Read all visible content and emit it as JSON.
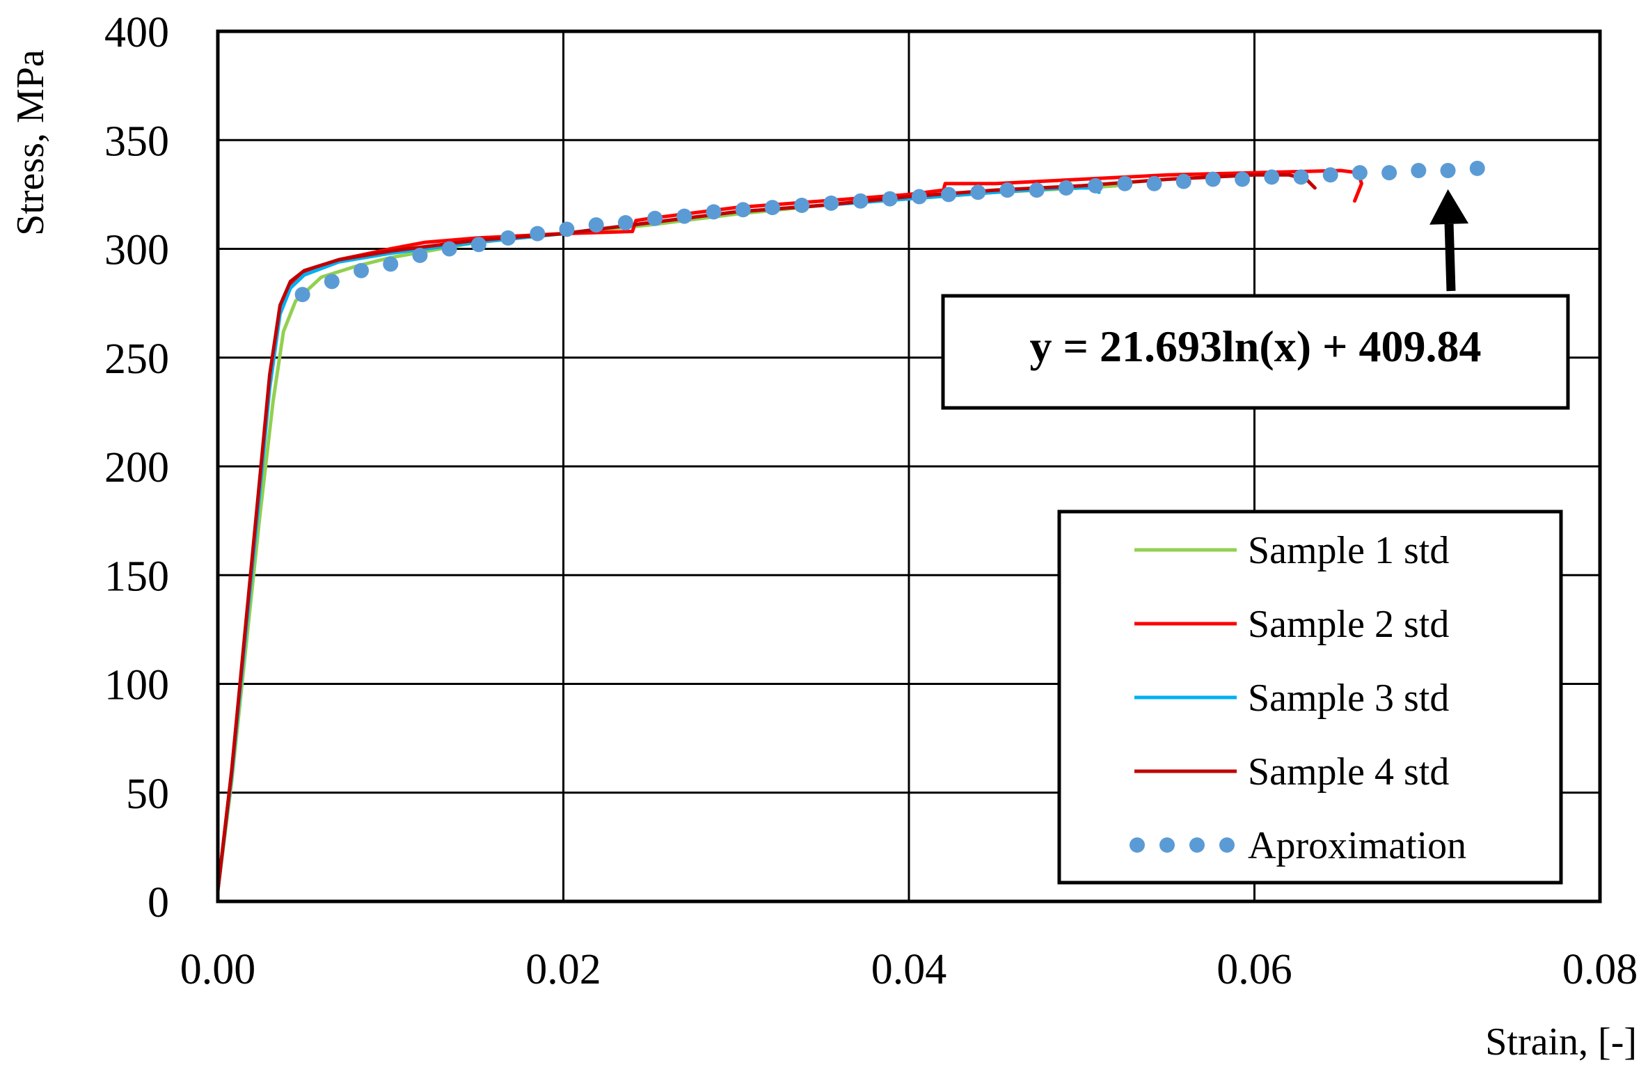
{
  "chart_data": {
    "type": "line",
    "title": "",
    "xlabel": "Strain, [-]",
    "ylabel": "Stress, MPa",
    "xlim": [
      0,
      0.08
    ],
    "ylim": [
      0,
      400
    ],
    "grid": true,
    "x_ticks": [
      0,
      0.02,
      0.04,
      0.06,
      0.08
    ],
    "x_tick_labels": [
      "0.00",
      "0.02",
      "0.04",
      "0.06",
      "0.08"
    ],
    "y_ticks": [
      0,
      50,
      100,
      150,
      200,
      250,
      300,
      350,
      400
    ],
    "y_tick_labels": [
      "0",
      "50",
      "100",
      "150",
      "200",
      "250",
      "300",
      "350",
      "400"
    ],
    "legend_position": "bottom-right",
    "annotation": {
      "text": "y = 21.693ln(x) + 409.84",
      "arrow_target": [
        0.071,
        337
      ]
    },
    "series": [
      {
        "name": "Sample 1 std",
        "color": "#92d050",
        "style": "solid",
        "x": [
          0,
          0.0008,
          0.0016,
          0.0024,
          0.0032,
          0.0038,
          0.0045,
          0.006,
          0.008,
          0.01,
          0.015,
          0.02,
          0.025,
          0.03,
          0.035,
          0.04,
          0.045,
          0.05,
          0.052
        ],
        "y": [
          5,
          55,
          115,
          175,
          230,
          262,
          276,
          287,
          292,
          296,
          303,
          307,
          311,
          316,
          320,
          323,
          326,
          328,
          329
        ]
      },
      {
        "name": "Sample 2 std",
        "color": "#ff0000",
        "style": "solid",
        "x": [
          0,
          0.0008,
          0.0016,
          0.0024,
          0.003,
          0.0036,
          0.0042,
          0.005,
          0.007,
          0.01,
          0.012,
          0.015,
          0.02,
          0.024,
          0.0242,
          0.025,
          0.03,
          0.035,
          0.04,
          0.042,
          0.0421,
          0.045,
          0.05,
          0.055,
          0.06,
          0.065,
          0.066,
          0.0662,
          0.0658
        ],
        "y": [
          5,
          60,
          125,
          190,
          240,
          272,
          283,
          289,
          295,
          300,
          303,
          305,
          307,
          308,
          313,
          314,
          319,
          322,
          325,
          327,
          330,
          330,
          332,
          334,
          335,
          336,
          335,
          330,
          322
        ]
      },
      {
        "name": "Sample 3 std",
        "color": "#00b0f0",
        "style": "solid",
        "x": [
          0,
          0.0008,
          0.0016,
          0.0024,
          0.003,
          0.0036,
          0.0042,
          0.005,
          0.007,
          0.01,
          0.015,
          0.02,
          0.025,
          0.03,
          0.035,
          0.04,
          0.045,
          0.049,
          0.0505,
          0.051
        ],
        "y": [
          5,
          58,
          122,
          186,
          236,
          270,
          282,
          288,
          294,
          298,
          303,
          307,
          312,
          317,
          320,
          323,
          326,
          328,
          328,
          326
        ]
      },
      {
        "name": "Sample 4 std",
        "color": "#c00000",
        "style": "solid",
        "x": [
          0,
          0.0008,
          0.0016,
          0.0024,
          0.003,
          0.0036,
          0.0042,
          0.005,
          0.007,
          0.01,
          0.015,
          0.02,
          0.025,
          0.03,
          0.035,
          0.04,
          0.045,
          0.05,
          0.055,
          0.06,
          0.062,
          0.063,
          0.0635
        ],
        "y": [
          5,
          60,
          126,
          192,
          242,
          274,
          285,
          290,
          295,
          299,
          304,
          307,
          312,
          317,
          320,
          324,
          327,
          329,
          332,
          334,
          334,
          332,
          328
        ]
      },
      {
        "name": "Aproximation",
        "color": "#5b9bd5",
        "style": "dotted",
        "x": [
          0.0049,
          0.0066,
          0.0083,
          0.01,
          0.0117,
          0.0134,
          0.0151,
          0.0168,
          0.0185,
          0.0202,
          0.0219,
          0.0236,
          0.0253,
          0.027,
          0.0287,
          0.0304,
          0.0321,
          0.0338,
          0.0355,
          0.0372,
          0.0389,
          0.0406,
          0.0423,
          0.044,
          0.0457,
          0.0474,
          0.0491,
          0.0508,
          0.0525,
          0.0542,
          0.0559,
          0.0576,
          0.0593,
          0.061,
          0.0627,
          0.0644,
          0.0661,
          0.0678,
          0.0695,
          0.0712,
          0.0729
        ],
        "y": [
          279,
          285,
          290,
          293,
          297,
          300,
          302,
          305,
          307,
          309,
          311,
          312,
          314,
          315,
          317,
          318,
          319,
          320,
          321,
          322,
          323,
          324,
          325,
          326,
          327,
          327,
          328,
          329,
          330,
          330,
          331,
          332,
          332,
          333,
          333,
          334,
          335,
          335,
          336,
          336,
          337
        ]
      }
    ]
  }
}
